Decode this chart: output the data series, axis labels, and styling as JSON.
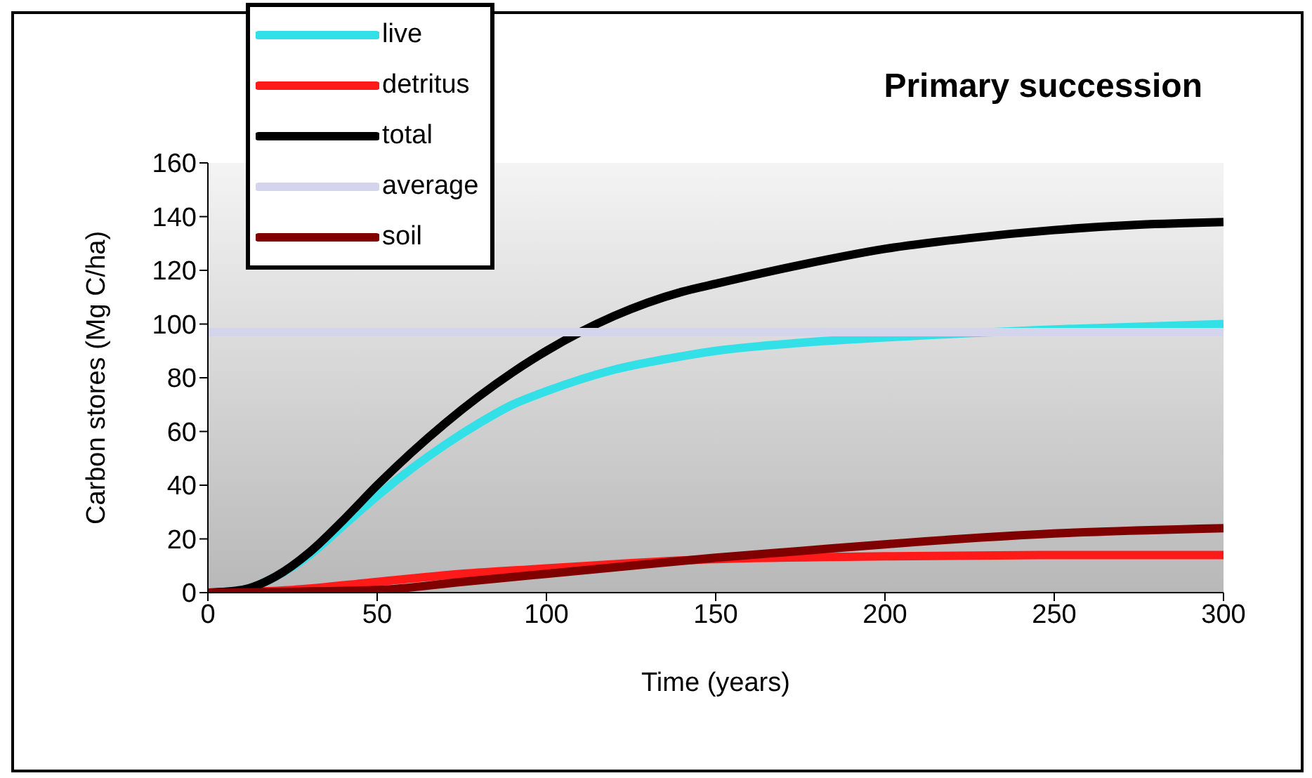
{
  "chart_data": {
    "type": "line",
    "title": "Primary succession",
    "xlabel": "Time (years)",
    "ylabel": "Carbon stores (Mg C/ha)",
    "xlim": [
      0,
      300
    ],
    "xticks": [
      0,
      50,
      100,
      150,
      200,
      250,
      300
    ],
    "ylim": [
      0,
      160
    ],
    "yticks": [
      0,
      20,
      40,
      60,
      80,
      100,
      120,
      140,
      160
    ],
    "grid": false,
    "legend": "top left",
    "marker": "none",
    "line_style": "solid",
    "series": [
      {
        "name": "live",
        "color": "#33e0e8",
        "x": [
          0,
          10,
          20,
          30,
          40,
          50,
          60,
          70,
          80,
          90,
          100,
          120,
          140,
          150,
          175,
          200,
          250,
          300
        ],
        "values": [
          0,
          1,
          6,
          14,
          25,
          36,
          46,
          55,
          63,
          70,
          75,
          83,
          88,
          90,
          93,
          95,
          98,
          100
        ]
      },
      {
        "name": "detritus",
        "color": "#ff1a1a",
        "x": [
          0,
          25,
          50,
          75,
          100,
          125,
          150,
          200,
          250,
          300
        ],
        "values": [
          0,
          1,
          4,
          7,
          9,
          11,
          12.5,
          13.5,
          14,
          14
        ]
      },
      {
        "name": "total",
        "color": "#000000",
        "x": [
          0,
          10,
          20,
          30,
          40,
          50,
          60,
          70,
          80,
          90,
          100,
          120,
          140,
          150,
          175,
          200,
          225,
          250,
          275,
          300
        ],
        "values": [
          0,
          1,
          6,
          15,
          27,
          40,
          52,
          63,
          73,
          82,
          90,
          103,
          112,
          115,
          122,
          128,
          132,
          135,
          137,
          138
        ]
      },
      {
        "name": "average",
        "color": "#d4d4ec",
        "x": [
          0,
          300
        ],
        "values": [
          97,
          97
        ]
      },
      {
        "name": "soil",
        "color": "#800000",
        "x": [
          0,
          50,
          75,
          100,
          125,
          150,
          175,
          200,
          250,
          300
        ],
        "values": [
          0,
          1,
          4,
          7,
          10,
          13,
          15.5,
          18,
          22,
          24
        ]
      }
    ]
  }
}
